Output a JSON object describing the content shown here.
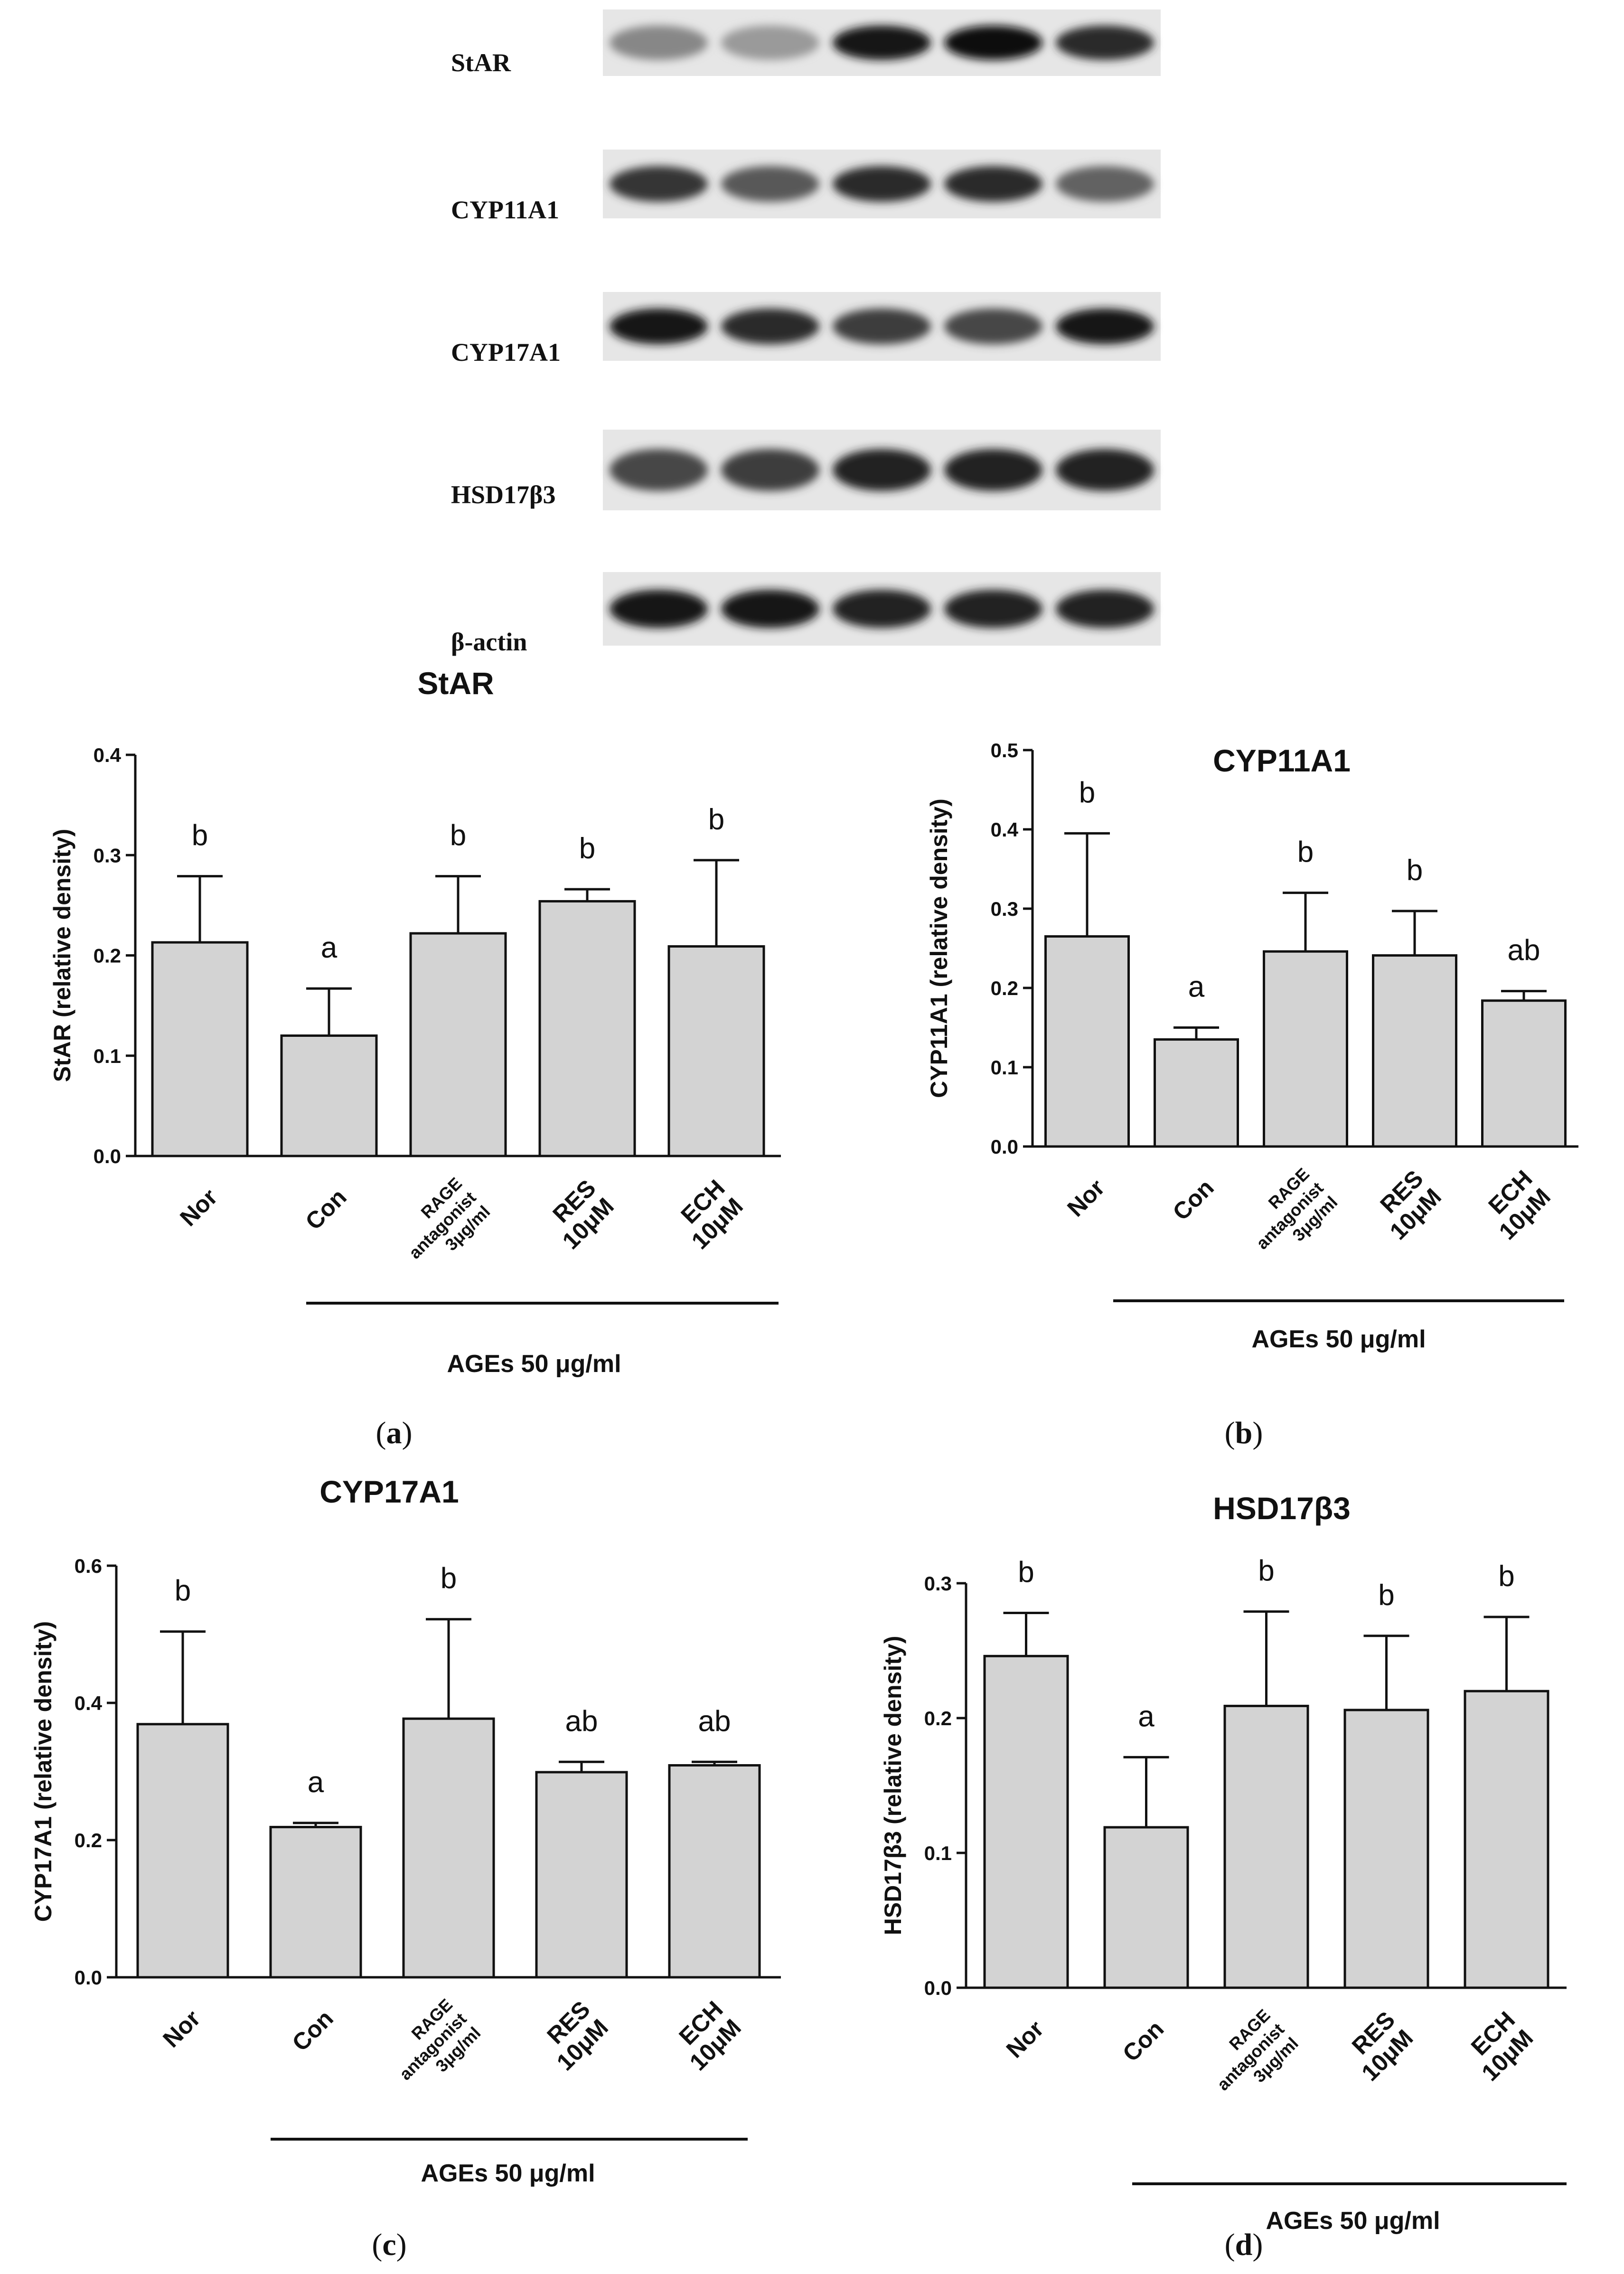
{
  "blot": {
    "lanes": 5,
    "rows": [
      {
        "label": "StAR",
        "intensity": [
          0.35,
          0.25,
          0.95,
          1.0,
          0.85
        ]
      },
      {
        "label": "CYP11A1",
        "intensity": [
          0.8,
          0.6,
          0.85,
          0.85,
          0.55
        ]
      },
      {
        "label": "CYP17A1",
        "intensity": [
          0.95,
          0.85,
          0.75,
          0.7,
          0.95
        ]
      },
      {
        "label": "HSD17β3",
        "intensity": [
          0.7,
          0.75,
          0.9,
          0.9,
          0.9
        ]
      },
      {
        "label": "β-actin",
        "intensity": [
          0.95,
          0.95,
          0.9,
          0.9,
          0.9
        ]
      }
    ]
  },
  "group_label": "AGEs 50 μg/ml",
  "chart_data": [
    {
      "type": "bar",
      "panel": "a",
      "title": "StAR",
      "ylabel": "StAR (relative density)",
      "ylim": [
        0,
        0.4
      ],
      "yticks": [
        "0.0",
        "0.1",
        "0.2",
        "0.3",
        "0.4"
      ],
      "categories": [
        [
          "Nor"
        ],
        [
          "Con"
        ],
        [
          "RAGE",
          "antagonist",
          "3μg/ml"
        ],
        [
          "RES",
          "10μM"
        ],
        [
          "ECH",
          "10μM"
        ]
      ],
      "values": [
        0.213,
        0.12,
        0.222,
        0.254,
        0.209
      ],
      "errors": [
        0.066,
        0.047,
        0.057,
        0.012,
        0.086
      ],
      "significance": [
        "b",
        "a",
        "b",
        "b",
        "b"
      ]
    },
    {
      "type": "bar",
      "panel": "b",
      "title": "CYP11A1",
      "ylabel": "CYP11A1 (relative density)",
      "ylim": [
        0,
        0.5
      ],
      "yticks": [
        "0.0",
        "0.1",
        "0.2",
        "0.3",
        "0.4",
        "0.5"
      ],
      "categories": [
        [
          "Nor"
        ],
        [
          "Con"
        ],
        [
          "RAGE",
          "antagonist",
          "3μg/ml"
        ],
        [
          "RES",
          "10μM"
        ],
        [
          "ECH",
          "10μM"
        ]
      ],
      "values": [
        0.265,
        0.135,
        0.246,
        0.241,
        0.184
      ],
      "errors": [
        0.13,
        0.015,
        0.074,
        0.056,
        0.012
      ],
      "significance": [
        "b",
        "a",
        "b",
        "b",
        "ab"
      ]
    },
    {
      "type": "bar",
      "panel": "c",
      "title": "CYP17A1",
      "ylabel": "CYP17A1 (relative density)",
      "ylim": [
        0,
        0.6
      ],
      "yticks": [
        "0.0",
        "0.2",
        "0.4",
        "0.6"
      ],
      "categories": [
        [
          "Nor"
        ],
        [
          "Con"
        ],
        [
          "RAGE",
          "antagonist",
          "3μg/ml"
        ],
        [
          "RES",
          "10μM"
        ],
        [
          "ECH",
          "10μM"
        ]
      ],
      "values": [
        0.369,
        0.219,
        0.377,
        0.299,
        0.309
      ],
      "errors": [
        0.135,
        0.006,
        0.145,
        0.015,
        0.005
      ],
      "significance": [
        "b",
        "a",
        "b",
        "ab",
        "ab"
      ]
    },
    {
      "type": "bar",
      "panel": "d",
      "title": "HSD17β3",
      "ylabel": "HSD17β3 (relative density)",
      "ylim": [
        0,
        0.3
      ],
      "yticks": [
        "0.0",
        "0.1",
        "0.2",
        "0.3"
      ],
      "categories": [
        [
          "Nor"
        ],
        [
          "Con"
        ],
        [
          "RAGE",
          "antagonist",
          "3μg/ml"
        ],
        [
          "RES",
          "10μM"
        ],
        [
          "ECH",
          "10μM"
        ]
      ],
      "values": [
        0.246,
        0.119,
        0.209,
        0.206,
        0.22
      ],
      "errors": [
        0.032,
        0.052,
        0.07,
        0.055,
        0.055
      ],
      "significance": [
        "b",
        "a",
        "b",
        "b",
        "b"
      ]
    }
  ]
}
